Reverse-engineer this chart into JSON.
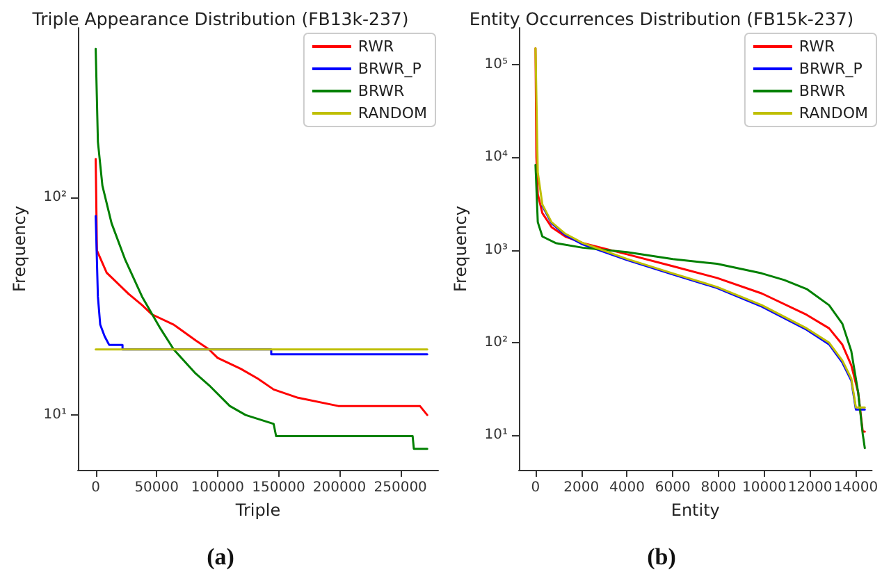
{
  "chart_data": [
    {
      "type": "line",
      "title": "Triple Appearance Distribution (FB13k-237)",
      "xlabel": "Triple",
      "ylabel": "Frequency",
      "annotations": [
        "(a)"
      ],
      "log": "y",
      "legend": "top right",
      "marker": "none",
      "xlim": [
        -14600,
        281000
      ],
      "xticks": [
        0,
        50000,
        100000,
        150000,
        200000,
        250000
      ],
      "ylim": [
        5.6,
        600
      ],
      "yticks": [
        {
          "value": 10,
          "label": "10¹"
        },
        {
          "value": 100,
          "label": "10²"
        }
      ],
      "series": [
        {
          "name": "RWR",
          "color": "#ff0000",
          "x": [
            0,
            1000,
            9000,
            27000,
            38000,
            46000,
            64000,
            82000,
            93000,
            100000,
            119000,
            133000,
            146000,
            166000,
            199000,
            266000,
            272000
          ],
          "values": [
            150,
            57,
            45,
            36,
            32,
            29,
            26,
            22,
            20,
            18.3,
            16.3,
            14.7,
            13.1,
            12,
            11,
            11,
            10
          ]
        },
        {
          "name": "BRWR_P",
          "color": "#0000ff",
          "x": [
            0,
            1800,
            3700,
            7300,
            11000,
            22000,
            22000,
            144000,
            144000,
            272000
          ],
          "values": [
            82,
            35,
            26,
            23,
            21,
            21,
            20,
            20,
            19,
            19
          ]
        },
        {
          "name": "BRWR",
          "color": "#008000",
          "x": [
            0,
            1800,
            5500,
            13000,
            24000,
            38000,
            53000,
            64000,
            82000,
            93000,
            110000,
            123000,
            146000,
            148000,
            260000,
            261000,
            272000
          ],
          "values": [
            480,
            180,
            113,
            76,
            52,
            35,
            25,
            20,
            15.5,
            13.7,
            11,
            10,
            9.1,
            8,
            8,
            7,
            7
          ]
        },
        {
          "name": "RANDOM",
          "color": "#bfbf00",
          "x": [
            0,
            272000
          ],
          "values": [
            20,
            20
          ]
        }
      ]
    },
    {
      "type": "line",
      "title": "Entity Occurrences Distribution (FB15k-237)",
      "xlabel": "Entity",
      "ylabel": "Frequency",
      "annotations": [
        "(b)"
      ],
      "log": "y",
      "legend": "top right",
      "marker": "none",
      "xlim": [
        -725,
        14700
      ],
      "xticks": [
        0,
        2000,
        4000,
        6000,
        8000,
        10000,
        12000,
        14000
      ],
      "ylim": [
        4.25,
        250000
      ],
      "yticks": [
        {
          "value": 10,
          "label": "10¹"
        },
        {
          "value": 100,
          "label": "10²"
        },
        {
          "value": 1000,
          "label": "10³"
        },
        {
          "value": 10000,
          "label": "10⁴"
        },
        {
          "value": 100000,
          "label": "10⁵"
        }
      ],
      "series": [
        {
          "name": "RWR",
          "color": "#ff0000",
          "x": [
            0,
            40,
            100,
            300,
            700,
            1300,
            2060,
            4000,
            6000,
            7930,
            9890,
            11850,
            12830,
            13400,
            13800,
            14100,
            14300,
            14390
          ],
          "values": [
            150000,
            10000,
            4000,
            2500,
            1770,
            1400,
            1190,
            900,
            670,
            500,
            340,
            200,
            143,
            96,
            57,
            29,
            11,
            11
          ]
        },
        {
          "name": "BRWR_P",
          "color": "#0000ff",
          "x": [
            300,
            700,
            1300,
            2060,
            4000,
            6000,
            7930,
            9890,
            11850,
            12830,
            13410,
            13800,
            14000,
            14390
          ],
          "values": [
            3000,
            1950,
            1450,
            1150,
            780,
            545,
            390,
            245,
            138,
            96,
            61,
            39,
            19,
            19
          ]
        },
        {
          "name": "BRWR",
          "color": "#008000",
          "x": [
            0,
            100,
            300,
            880,
            2060,
            4000,
            6000,
            7930,
            9890,
            10870,
            11850,
            12830,
            13410,
            13800,
            14100,
            14300,
            14390
          ],
          "values": [
            8300,
            2000,
            1400,
            1190,
            1060,
            950,
            800,
            710,
            560,
            475,
            380,
            254,
            160,
            81,
            29,
            10.3,
            7.3
          ]
        },
        {
          "name": "RANDOM",
          "color": "#bfbf00",
          "x": [
            0,
            100,
            300,
            700,
            1300,
            2060,
            4000,
            6000,
            7930,
            9890,
            11850,
            12830,
            13410,
            13800,
            14000,
            14390
          ],
          "values": [
            150000,
            6900,
            3100,
            2000,
            1500,
            1190,
            800,
            560,
            400,
            254,
            143,
            100,
            64,
            41,
            20,
            20
          ]
        }
      ]
    }
  ]
}
